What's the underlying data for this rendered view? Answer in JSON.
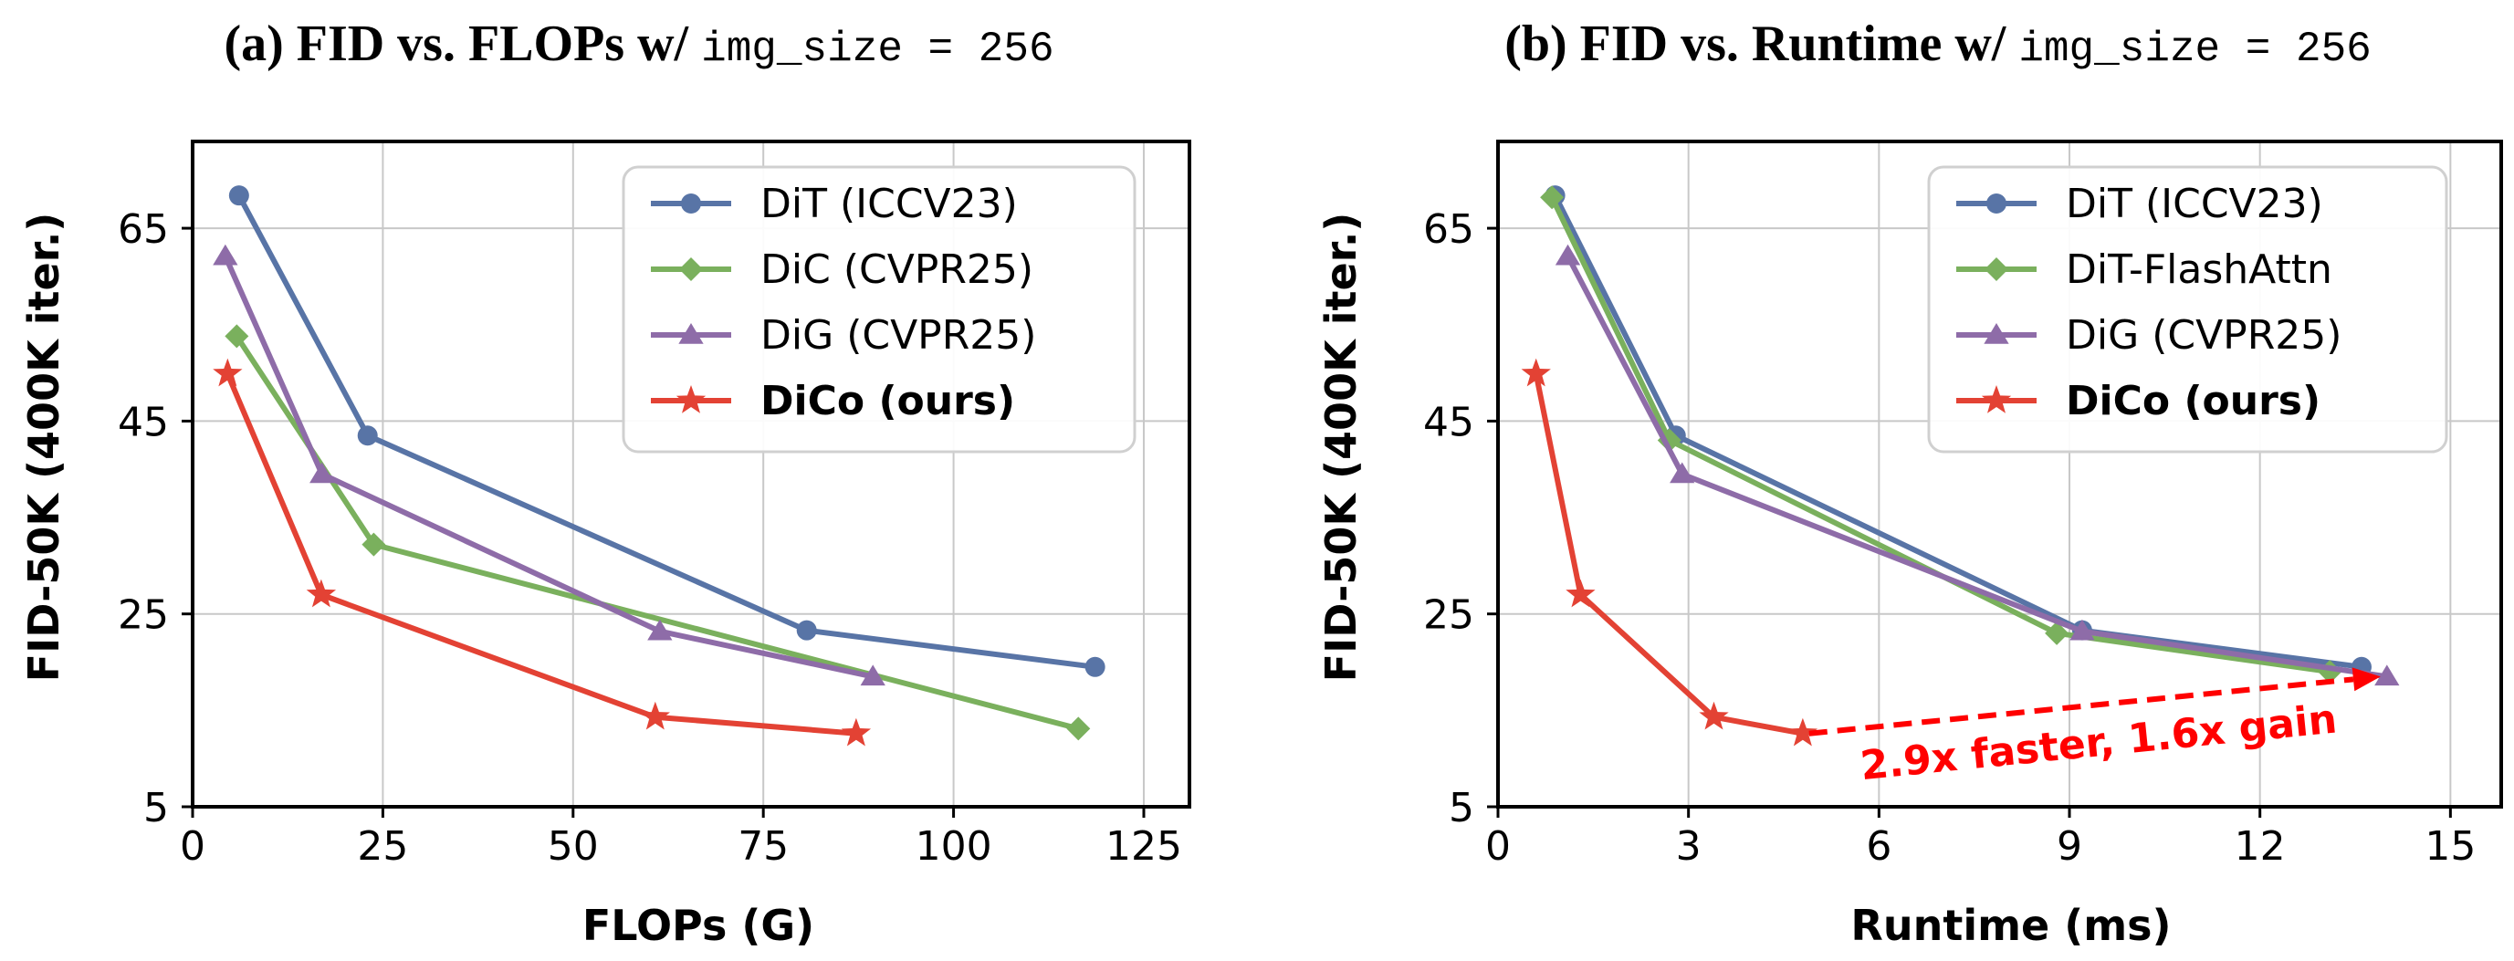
{
  "chart_data": [
    {
      "type": "line",
      "title_main": "(a) FID vs. FLOPs w/",
      "title_code": "img_size = 256",
      "xlabel": "FLOPs (G)",
      "ylabel": "FID-50K (400K iter.)",
      "xlim": [
        0,
        131
      ],
      "ylim": [
        5,
        74
      ],
      "xticks": [
        0,
        25,
        50,
        75,
        100,
        125
      ],
      "yticks": [
        5,
        25,
        45,
        65
      ],
      "grid": true,
      "legend_position": "top-right",
      "series": [
        {
          "name": "DiT (ICCV23)",
          "bold": false,
          "color": "#5874a6",
          "marker": "circle",
          "x": [
            6.1,
            23.0,
            80.7,
            118.6
          ],
          "y": [
            68.4,
            43.5,
            23.3,
            19.5
          ]
        },
        {
          "name": "DiC (CVPR25)",
          "bold": false,
          "color": "#7ab05d",
          "marker": "diamond",
          "x": [
            5.8,
            23.8,
            116.4
          ],
          "y": [
            53.8,
            32.2,
            13.1
          ]
        },
        {
          "name": "DiG (CVPR25)",
          "bold": false,
          "color": "#8e6ca8",
          "marker": "triangle",
          "x": [
            4.3,
            17.0,
            61.4,
            89.4
          ],
          "y": [
            62.1,
            39.5,
            23.2,
            18.5
          ]
        },
        {
          "name": "DiCo (ours)",
          "bold": true,
          "color": "#e34234",
          "marker": "star",
          "x": [
            4.6,
            16.9,
            60.8,
            87.2
          ],
          "y": [
            49.9,
            27.0,
            14.3,
            12.6
          ]
        }
      ]
    },
    {
      "type": "line",
      "title_main": "(b) FID vs. Runtime w/",
      "title_code": "img_size = 256",
      "xlabel": "Runtime (ms)",
      "ylabel": "FID-50K (400K iter.)",
      "xlim": [
        0,
        15.8
      ],
      "ylim": [
        5,
        74
      ],
      "xticks": [
        0,
        3,
        6,
        9,
        12,
        15
      ],
      "yticks": [
        5,
        25,
        45,
        65
      ],
      "grid": true,
      "legend_position": "top-right",
      "annotation": {
        "text": "2.9x faster, 1.6x gain",
        "color": "#ff0000",
        "from": [
          4.9,
          12.6
        ],
        "to": [
          13.9,
          18.5
        ]
      },
      "series": [
        {
          "name": "DiT (ICCV23)",
          "bold": false,
          "color": "#5874a6",
          "marker": "circle",
          "x": [
            0.9,
            2.8,
            9.2,
            13.6
          ],
          "y": [
            68.4,
            43.5,
            23.3,
            19.5
          ]
        },
        {
          "name": "DiT-FlashAttn",
          "bold": false,
          "color": "#7ab05d",
          "marker": "diamond",
          "x": [
            0.85,
            2.7,
            8.8,
            13.1
          ],
          "y": [
            68.2,
            43.0,
            23.0,
            19.0
          ]
        },
        {
          "name": "DiG (CVPR25)",
          "bold": false,
          "color": "#8e6ca8",
          "marker": "triangle",
          "x": [
            1.1,
            2.9,
            9.2,
            14.0
          ],
          "y": [
            62.1,
            39.5,
            23.2,
            18.5
          ]
        },
        {
          "name": "DiCo (ours)",
          "bold": true,
          "color": "#e34234",
          "marker": "star",
          "x": [
            0.6,
            1.3,
            3.4,
            4.8
          ],
          "y": [
            49.9,
            27.0,
            14.3,
            12.6
          ]
        }
      ]
    }
  ]
}
